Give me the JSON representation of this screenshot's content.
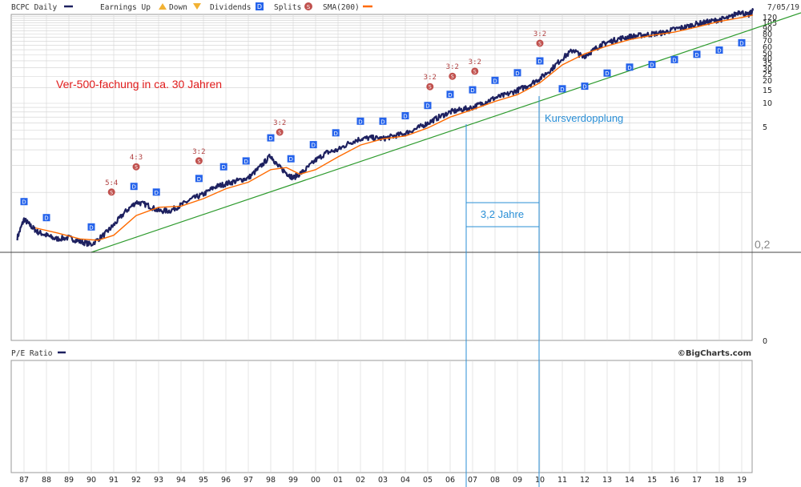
{
  "header": {
    "symbol_label": "BCPC Daily",
    "earnings_label": "Earnings Up",
    "down_label": "Down",
    "dividends_label": "Dividends",
    "dividend_marker": "D",
    "splits_label": "Splits",
    "split_marker": "S",
    "sma_label": "SMA(200)",
    "date": "7/05/19"
  },
  "lower_panel": {
    "title": "P/E Ratio",
    "credit": "©BigCharts.com"
  },
  "colors": {
    "price": "#1e2160",
    "sma": "#ff6a00",
    "trend": "#2e9b2e",
    "annotation_blue": "#2a8fd6",
    "annotation_red": "#e01a1a",
    "dividend": "#2563eb",
    "split": "#c0504d"
  },
  "annotations": {
    "growth_note": "Ver-500-fachung in ca. 30 Jahren",
    "doubling_note": "Kursverdopplung",
    "period_note": "3,2 Jahre",
    "level_note": "0,2"
  },
  "chart_data": {
    "type": "line",
    "x_ticks": [
      "87",
      "88",
      "89",
      "90",
      "91",
      "92",
      "93",
      "94",
      "95",
      "96",
      "97",
      "98",
      "99",
      "00",
      "01",
      "02",
      "03",
      "04",
      "05",
      "06",
      "07",
      "08",
      "09",
      "10",
      "11",
      "12",
      "13",
      "14",
      "15",
      "16",
      "17",
      "18",
      "19"
    ],
    "y_ticks": [
      "120",
      "105",
      "90",
      "80",
      "70",
      "60",
      "50",
      "40",
      "35",
      "30",
      "25",
      "20",
      "15",
      "10",
      "5",
      "0"
    ],
    "y_scale": "log",
    "series": [
      {
        "name": "BCPC Daily",
        "x": [
          1986.7,
          1987.0,
          1987.3,
          1987.6,
          1988.0,
          1988.4,
          1989.0,
          1989.5,
          1990.0,
          1990.6,
          1991.0,
          1991.5,
          1992.0,
          1992.5,
          1993.0,
          1993.5,
          1994.0,
          1994.5,
          1995.0,
          1995.5,
          1996.0,
          1996.5,
          1997.0,
          1997.5,
          1998.0,
          1998.3,
          1998.7,
          1999.0,
          1999.5,
          2000.0,
          2000.5,
          2001.0,
          2001.5,
          2002.0,
          2002.5,
          2003.0,
          2003.5,
          2004.0,
          2004.5,
          2005.0,
          2005.5,
          2006.0,
          2006.5,
          2007.0,
          2007.5,
          2008.0,
          2008.5,
          2009.0,
          2009.5,
          2010.0,
          2010.5,
          2011.0,
          2011.5,
          2011.9,
          2012.3,
          2012.7,
          2013.0,
          2013.5,
          2014.0,
          2014.5,
          2015.0,
          2015.5,
          2016.0,
          2016.5,
          2017.0,
          2017.5,
          2018.0,
          2018.5,
          2018.9,
          2019.3,
          2019.5
        ],
        "y": [
          0.31,
          0.5,
          0.42,
          0.36,
          0.33,
          0.3,
          0.31,
          0.28,
          0.26,
          0.34,
          0.43,
          0.6,
          0.78,
          0.72,
          0.62,
          0.62,
          0.72,
          0.85,
          0.95,
          1.15,
          1.25,
          1.35,
          1.45,
          1.9,
          2.6,
          2.0,
          1.65,
          1.45,
          1.75,
          2.3,
          2.8,
          3.0,
          3.6,
          4.0,
          4.1,
          4.0,
          4.3,
          4.6,
          5.2,
          6.0,
          7.0,
          8.0,
          8.5,
          9.0,
          10.2,
          11.5,
          12.5,
          14.0,
          16.0,
          19.0,
          24.0,
          32.0,
          40.0,
          33.0,
          38.0,
          45.0,
          48.0,
          53.0,
          56.0,
          58.0,
          60.0,
          62.0,
          68.0,
          72.0,
          78.0,
          82.0,
          87.0,
          92.0,
          108.0,
          97.0,
          110.0
        ]
      },
      {
        "name": "SMA(200)",
        "x": [
          1987.5,
          1988.5,
          1989.5,
          1990.3,
          1991.0,
          1992.0,
          1993.0,
          1994.0,
          1995.0,
          1996.0,
          1997.0,
          1998.0,
          1998.7,
          1999.3,
          2000.0,
          2001.0,
          2002.0,
          2003.0,
          2004.0,
          2005.0,
          2006.0,
          2007.0,
          2008.0,
          2009.0,
          2010.0,
          2011.0,
          2012.0,
          2013.0,
          2014.0,
          2015.0,
          2016.0,
          2017.0,
          2018.0,
          2019.0,
          2019.5
        ],
        "y": [
          0.4,
          0.35,
          0.3,
          0.29,
          0.33,
          0.55,
          0.68,
          0.7,
          0.85,
          1.1,
          1.3,
          1.8,
          1.9,
          1.6,
          1.8,
          2.5,
          3.4,
          4.0,
          4.3,
          5.3,
          7.0,
          8.5,
          10.5,
          12.5,
          17.0,
          27.0,
          36.0,
          44.0,
          52.0,
          58.0,
          63.0,
          72.0,
          83.0,
          92.0,
          98.0
        ]
      }
    ],
    "trendline": {
      "x": [
        1990.0,
        2019.5
      ],
      "y": [
        0.2,
        108.0
      ]
    },
    "splits": [
      {
        "x": 1990.9,
        "label": "5:4"
      },
      {
        "x": 1992.0,
        "label": "4:3"
      },
      {
        "x": 1994.8,
        "label": "3:2"
      },
      {
        "x": 1998.4,
        "label": "3:2"
      },
      {
        "x": 2005.1,
        "label": "3:2"
      },
      {
        "x": 2006.1,
        "label": "3:2"
      },
      {
        "x": 2007.1,
        "label": "3:2"
      },
      {
        "x": 2010.0,
        "label": "3:2"
      }
    ],
    "dividends_x": [
      1987.0,
      1988.0,
      1990.0,
      1991.9,
      1992.9,
      1994.8,
      1995.9,
      1996.9,
      1998.0,
      1998.9,
      1999.9,
      2000.9,
      2002.0,
      2003.0,
      2004.0,
      2005.0,
      2006.0,
      2007.0,
      2008.0,
      2009.0,
      2010.0,
      2011.0,
      2012.0,
      2013.0,
      2014.0,
      2015.0,
      2016.0,
      2017.0,
      2018.0,
      2019.0
    ]
  }
}
